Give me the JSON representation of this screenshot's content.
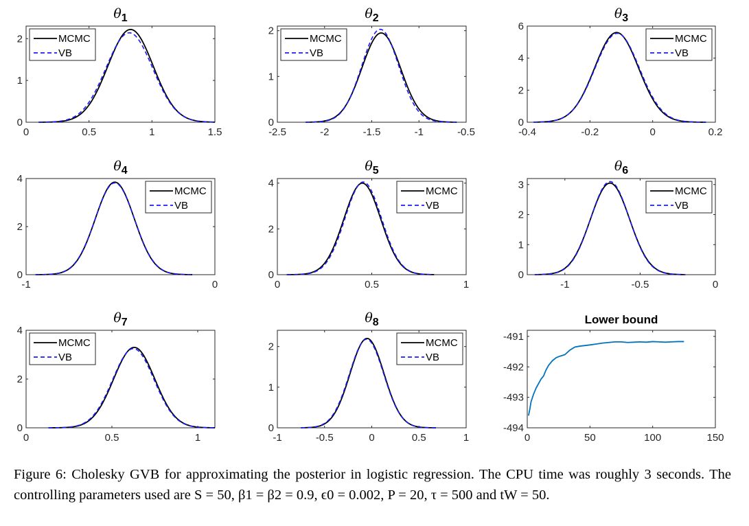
{
  "colors": {
    "mcmc": "#000000",
    "vb": "#1a1aff",
    "bound": "#0072bd"
  },
  "chart_data": [
    {
      "type": "line",
      "title": "θ1",
      "title_symbol": "θ",
      "title_sub": "1",
      "xlim": [
        0,
        1.5
      ],
      "ylim": [
        0,
        2.3
      ],
      "xticks": [
        0,
        0.5,
        1,
        1.5
      ],
      "xtick_labels": [
        "0",
        "0.5",
        "1",
        "1.5"
      ],
      "yticks": [
        0,
        1,
        2
      ],
      "ytick_labels": [
        "0",
        "1",
        "2"
      ],
      "legend": [
        "MCMC",
        "VB"
      ],
      "legend_position": "top-left",
      "series": [
        {
          "name": "MCMC",
          "style": "solid",
          "mean": 0.83,
          "sd": 0.18,
          "peak": 2.22,
          "range": [
            0.1,
            1.5
          ]
        },
        {
          "name": "VB",
          "style": "dashed",
          "mean": 0.82,
          "sd": 0.185,
          "peak": 2.14,
          "range": [
            0.1,
            1.5
          ]
        }
      ]
    },
    {
      "type": "line",
      "title": "θ2",
      "title_symbol": "θ",
      "title_sub": "2",
      "xlim": [
        -2.5,
        -0.5
      ],
      "ylim": [
        0,
        2.1
      ],
      "xticks": [
        -2.5,
        -2,
        -1.5,
        -1,
        -0.5
      ],
      "xtick_labels": [
        "-2.5",
        "-2",
        "-1.5",
        "-1",
        "-0.5"
      ],
      "yticks": [
        0,
        1,
        2
      ],
      "ytick_labels": [
        "0",
        "1",
        "2"
      ],
      "legend": [
        "MCMC",
        "VB"
      ],
      "legend_position": "top-left",
      "series": [
        {
          "name": "MCMC",
          "style": "solid",
          "mean": -1.4,
          "sd": 0.205,
          "peak": 1.95,
          "range": [
            -2.2,
            -0.6
          ]
        },
        {
          "name": "VB",
          "style": "dashed",
          "mean": -1.41,
          "sd": 0.196,
          "peak": 2.03,
          "range": [
            -2.2,
            -0.6
          ]
        }
      ]
    },
    {
      "type": "line",
      "title": "θ3",
      "title_symbol": "θ",
      "title_sub": "3",
      "xlim": [
        -0.4,
        0.2
      ],
      "ylim": [
        0,
        6
      ],
      "xticks": [
        -0.4,
        -0.2,
        0,
        0.2
      ],
      "xtick_labels": [
        "-0.4",
        "-0.2",
        "0",
        "0.2"
      ],
      "yticks": [
        0,
        2,
        4,
        6
      ],
      "ytick_labels": [
        "0",
        "2",
        "4",
        "6"
      ],
      "legend": [
        "MCMC",
        "VB"
      ],
      "legend_position": "top-right",
      "series": [
        {
          "name": "MCMC",
          "style": "solid",
          "mean": -0.115,
          "sd": 0.07,
          "peak": 5.6,
          "range": [
            -0.38,
            0.17
          ]
        },
        {
          "name": "VB",
          "style": "dashed",
          "mean": -0.113,
          "sd": 0.071,
          "peak": 5.55,
          "range": [
            -0.38,
            0.17
          ]
        }
      ]
    },
    {
      "type": "line",
      "title": "θ4",
      "title_symbol": "θ",
      "title_sub": "4",
      "xlim": [
        -1,
        0
      ],
      "ylim": [
        0,
        4
      ],
      "xticks": [
        -1,
        0
      ],
      "xtick_labels": [
        "-1",
        "0"
      ],
      "yticks": [
        0,
        2,
        4
      ],
      "ytick_labels": [
        "0",
        "2",
        "4"
      ],
      "legend": [
        "MCMC",
        "VB"
      ],
      "legend_position": "top-right",
      "series": [
        {
          "name": "MCMC",
          "style": "solid",
          "mean": -0.53,
          "sd": 0.103,
          "peak": 3.85,
          "range": [
            -0.95,
            -0.12
          ]
        },
        {
          "name": "VB",
          "style": "dashed",
          "mean": -0.53,
          "sd": 0.104,
          "peak": 3.82,
          "range": [
            -0.95,
            -0.12
          ]
        }
      ]
    },
    {
      "type": "line",
      "title": "θ5",
      "title_symbol": "θ",
      "title_sub": "5",
      "xlim": [
        0,
        1
      ],
      "ylim": [
        0,
        4.2
      ],
      "xticks": [
        0,
        0.5,
        1
      ],
      "xtick_labels": [
        "0",
        "0.5",
        "1"
      ],
      "yticks": [
        0,
        2,
        4
      ],
      "ytick_labels": [
        "0",
        "2",
        "4"
      ],
      "legend": [
        "MCMC",
        "VB"
      ],
      "legend_position": "top-right",
      "series": [
        {
          "name": "MCMC",
          "style": "solid",
          "mean": 0.45,
          "sd": 0.098,
          "peak": 4.0,
          "range": [
            0.05,
            0.83
          ]
        },
        {
          "name": "VB",
          "style": "dashed",
          "mean": 0.455,
          "sd": 0.097,
          "peak": 4.05,
          "range": [
            0.05,
            0.83
          ]
        }
      ]
    },
    {
      "type": "line",
      "title": "θ6",
      "title_symbol": "θ",
      "title_sub": "6",
      "xlim": [
        -1.25,
        0
      ],
      "ylim": [
        0,
        3.2
      ],
      "xticks": [
        -1,
        -0.5,
        0
      ],
      "xtick_labels": [
        "-1",
        "-0.5",
        "0"
      ],
      "yticks": [
        0,
        1,
        2,
        3
      ],
      "ytick_labels": [
        "0",
        "1",
        "2",
        "3"
      ],
      "legend": [
        "MCMC",
        "VB"
      ],
      "legend_position": "top-right",
      "series": [
        {
          "name": "MCMC",
          "style": "solid",
          "mean": -0.7,
          "sd": 0.13,
          "peak": 3.05,
          "range": [
            -1.2,
            -0.2
          ]
        },
        {
          "name": "VB",
          "style": "dashed",
          "mean": -0.7,
          "sd": 0.128,
          "peak": 3.1,
          "range": [
            -1.2,
            -0.2
          ]
        }
      ]
    },
    {
      "type": "line",
      "title": "θ7",
      "title_symbol": "θ",
      "title_sub": "7",
      "xlim": [
        0,
        1.1
      ],
      "ylim": [
        0,
        4
      ],
      "xticks": [
        0,
        0.5,
        1
      ],
      "xtick_labels": [
        "0",
        "0.5",
        "1"
      ],
      "yticks": [
        0,
        2,
        4
      ],
      "ytick_labels": [
        "0",
        "2",
        "4"
      ],
      "legend": [
        "MCMC",
        "VB"
      ],
      "legend_position": "top-left",
      "series": [
        {
          "name": "MCMC",
          "style": "solid",
          "mean": 0.63,
          "sd": 0.12,
          "peak": 3.3,
          "range": [
            0.13,
            1.1
          ]
        },
        {
          "name": "VB",
          "style": "dashed",
          "mean": 0.625,
          "sd": 0.121,
          "peak": 3.25,
          "range": [
            0.13,
            1.1
          ]
        }
      ]
    },
    {
      "type": "line",
      "title": "θ8",
      "title_symbol": "θ",
      "title_sub": "8",
      "xlim": [
        -1,
        1
      ],
      "ylim": [
        0,
        2.4
      ],
      "xticks": [
        -1,
        -0.5,
        0,
        0.5,
        1
      ],
      "xtick_labels": [
        "-1",
        "-0.5",
        "0",
        "0.5",
        "1"
      ],
      "yticks": [
        0,
        1,
        2
      ],
      "ytick_labels": [
        "0",
        "1",
        "2"
      ],
      "legend": [
        "MCMC",
        "VB"
      ],
      "legend_position": "top-right",
      "series": [
        {
          "name": "MCMC",
          "style": "solid",
          "mean": -0.05,
          "sd": 0.18,
          "peak": 2.2,
          "range": [
            -0.75,
            0.68
          ]
        },
        {
          "name": "VB",
          "style": "dashed",
          "mean": -0.055,
          "sd": 0.182,
          "peak": 2.18,
          "range": [
            -0.75,
            0.68
          ]
        }
      ]
    },
    {
      "type": "line",
      "title": "Lower bound",
      "xlim": [
        0,
        150
      ],
      "ylim": [
        -494,
        -490.8
      ],
      "xticks": [
        0,
        50,
        100,
        150
      ],
      "xtick_labels": [
        "0",
        "50",
        "100",
        "150"
      ],
      "yticks": [
        -494,
        -493,
        -492,
        -491
      ],
      "ytick_labels": [
        "-494",
        "-493",
        "-492",
        "-491"
      ],
      "series": [
        {
          "style": "solid",
          "x": [
            1,
            2,
            3,
            5,
            7,
            9,
            11,
            13,
            15,
            17,
            20,
            23,
            26,
            30,
            34,
            38,
            42,
            46,
            50,
            55,
            60,
            65,
            70,
            75,
            80,
            85,
            90,
            95,
            100,
            105,
            110,
            115,
            120,
            125
          ],
          "y": [
            -493.6,
            -493.4,
            -493.15,
            -492.9,
            -492.7,
            -492.55,
            -492.4,
            -492.3,
            -492.1,
            -491.95,
            -491.8,
            -491.7,
            -491.65,
            -491.6,
            -491.45,
            -491.35,
            -491.32,
            -491.3,
            -491.28,
            -491.25,
            -491.22,
            -491.2,
            -491.18,
            -491.18,
            -491.2,
            -491.19,
            -491.18,
            -491.19,
            -491.17,
            -491.18,
            -491.19,
            -491.18,
            -491.17,
            -491.17
          ]
        }
      ]
    }
  ],
  "caption": {
    "label": "Figure 6:",
    "text": "Cholesky GVB for approximating the posterior in logistic regression. The CPU time was roughly 3 seconds. The controlling parameters used are S = 50, β1 = β2 = 0.9, ϵ0 = 0.002, P = 20, τ = 500 and tW = 50."
  }
}
